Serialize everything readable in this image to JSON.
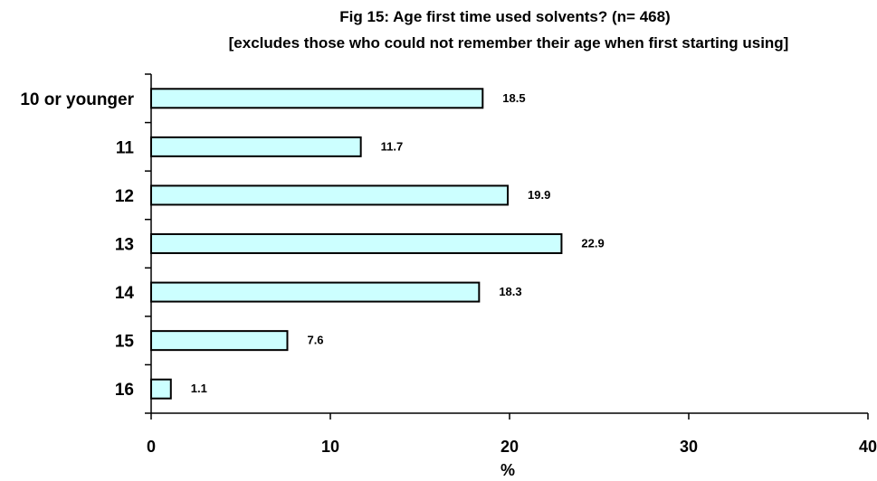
{
  "chart_data": {
    "type": "bar",
    "orientation": "horizontal",
    "title": "Fig 15:   Age first time used solvents? (n= 468)",
    "subtitle": "[excludes those who could not remember their age when first starting using]",
    "categories": [
      "10 or younger",
      "11",
      "12",
      "13",
      "14",
      "15",
      "16"
    ],
    "values": [
      18.5,
      11.7,
      19.9,
      22.9,
      18.3,
      7.6,
      1.1
    ],
    "data_labels": [
      "18.5",
      "11.7",
      "19.9",
      "22.9",
      "18.3",
      "7.6",
      "1.1"
    ],
    "xlabel": "%",
    "ylabel": "",
    "xlim": [
      0,
      40
    ],
    "x_ticks": [
      0,
      10,
      20,
      30,
      40
    ],
    "x_tick_labels": [
      "0",
      "10",
      "20",
      "30",
      "40"
    ],
    "grid": false,
    "legend": "none",
    "bar_fill": "#ccffff",
    "bar_stroke": "#000000"
  }
}
